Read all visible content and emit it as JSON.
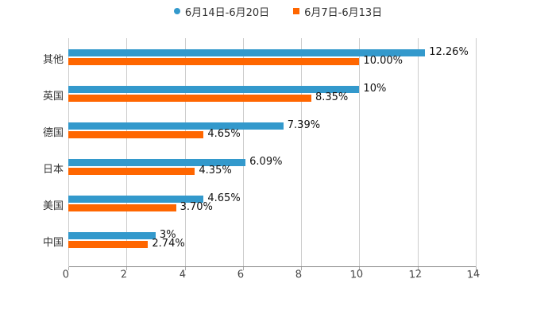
{
  "chart_data": {
    "type": "bar",
    "orientation": "horizontal",
    "title": "",
    "xlabel": "",
    "ylabel": "",
    "categories": [
      "其他",
      "英国",
      "德国",
      "日本",
      "美国",
      "中国"
    ],
    "series": [
      {
        "name": "6月14日-6月20日",
        "color": "#3399cc",
        "values": [
          12.26,
          10,
          7.39,
          6.09,
          4.65,
          3
        ],
        "labels": [
          "12.26%",
          "10%",
          "7.39%",
          "6.09%",
          "4.65%",
          "3%"
        ]
      },
      {
        "name": "6月7日-6月13日",
        "color": "#ff6600",
        "values": [
          10.0,
          8.35,
          4.65,
          4.35,
          3.7,
          2.74
        ],
        "labels": [
          "10.00%",
          "8.35%",
          "4.65%",
          "4.35%",
          "3.70%",
          "2.74%"
        ]
      }
    ],
    "xlim": [
      0,
      14
    ],
    "x_ticks": [
      "0",
      "2",
      "4",
      "6",
      "8",
      "10",
      "12",
      "14"
    ],
    "grid": true,
    "legend_position": "top"
  },
  "legend": [
    {
      "label": "6月14日-6月20日",
      "color": "#3399cc",
      "marker": "circle"
    },
    {
      "label": "6月7日-6月13日",
      "color": "#ff6600",
      "marker": "square"
    }
  ]
}
